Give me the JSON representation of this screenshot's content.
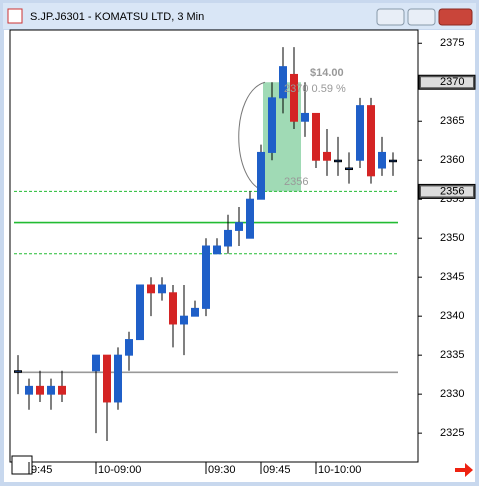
{
  "window_title": "S.JP.J6301 - KOMATSU LTD, 3 Min",
  "chart_data": {
    "type": "candlestick",
    "categories": [
      null,
      "9:45",
      null,
      null,
      null,
      "10-09:00",
      null,
      null,
      null,
      null,
      null,
      null,
      null,
      null,
      null,
      "09:30",
      null,
      null,
      null,
      null,
      "09:45",
      null,
      null,
      null,
      null,
      "10-10:00",
      null,
      null,
      null,
      null,
      null,
      null,
      null
    ],
    "open": [
      2333,
      2330,
      2331,
      2330,
      2331,
      2333,
      2335,
      2329,
      2335,
      2337,
      2344,
      2343,
      2343,
      2339,
      2340,
      2341,
      2348,
      2349,
      2351,
      2350,
      2355,
      2361,
      2368,
      2371,
      2365,
      2366,
      2361,
      2360,
      2359,
      2360,
      2367,
      2359,
      2360
    ],
    "high": [
      2335,
      2332,
      2333,
      2332,
      2333,
      2335,
      2335,
      2336,
      2338,
      2344,
      2345,
      2345,
      2344,
      2344,
      2342,
      2350,
      2350,
      2353,
      2354,
      2356,
      2362,
      2370,
      2374.5,
      2374.5,
      2370,
      2366,
      2364,
      2363,
      2361,
      2368,
      2368,
      2363,
      2361
    ],
    "low": [
      2330,
      2328,
      2329,
      2328,
      2329,
      2325,
      2324,
      2328,
      2333,
      2337,
      2340,
      2342,
      2336,
      2335,
      2340,
      2340,
      2348,
      2348,
      2349,
      2350,
      2355,
      2360,
      2366,
      2364,
      2363,
      2359,
      2358,
      2358,
      2357,
      2359,
      2357,
      2358,
      2358
    ],
    "close": [
      2333,
      2331,
      2330,
      2331,
      2330,
      2335,
      2329,
      2335,
      2337,
      2344,
      2343,
      2344,
      2339,
      2340,
      2341,
      2349,
      2349,
      2351,
      2352,
      2355,
      2361,
      2368,
      2372,
      2365,
      2366,
      2360,
      2360,
      2360,
      2359,
      2367,
      2358,
      2361,
      2360
    ],
    "up_color": "#1f5fc8",
    "down_color": "#d42424",
    "ylim": [
      2321.3,
      2376.7
    ],
    "yticks": [
      2325,
      2330,
      2335,
      2340,
      2345,
      2350,
      2355,
      2360,
      2365,
      2370,
      2375
    ],
    "price_markers": [
      2370,
      2356
    ],
    "levels": [
      {
        "value": 2356,
        "color": "#22bb33",
        "style": "dash"
      },
      {
        "value": 2352,
        "color": "#22bb33",
        "style": "solid"
      },
      {
        "value": 2348,
        "color": "#22bb33",
        "style": "dash"
      },
      {
        "value": 2332.8,
        "color": "#999999",
        "style": "solid"
      }
    ],
    "range_box": {
      "from": 2356,
      "to": 2370,
      "color": "#8fd4a8"
    },
    "annotations": [
      "$14.00",
      "2370  0.59 %",
      "2356"
    ]
  }
}
